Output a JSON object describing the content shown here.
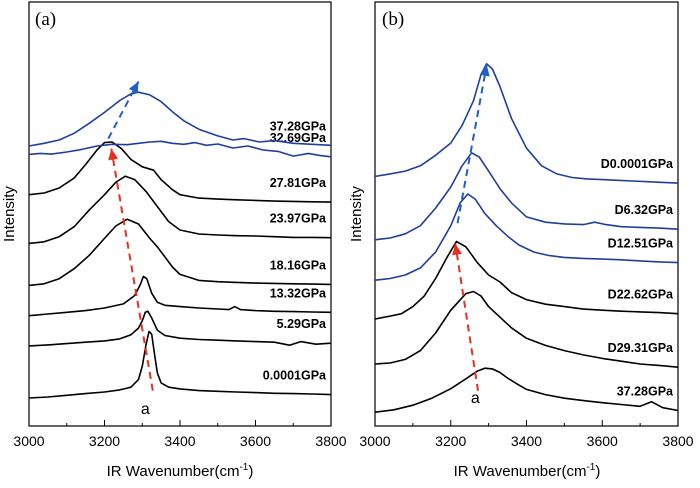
{
  "chart_data": {
    "type": "line",
    "ylabel": "Intensity",
    "xlabel": "IR Wavenumber(cm-1)",
    "xlabel_text": "IR Wavenumber(cm",
    "xlabel_sup": "-1",
    "xlabel_close": ")",
    "xlim": [
      3000,
      3800
    ],
    "xticks": [
      3000,
      3200,
      3400,
      3600,
      3800
    ],
    "xtick_labels": [
      "3000",
      "3200",
      "3400",
      "3600",
      "3800"
    ],
    "colors": {
      "compression": "#000000",
      "decompression": "#1f3f9e",
      "red_arrow": "#e8301c",
      "blue_arrow": "#1f5fc8"
    },
    "panels": [
      {
        "id": "a",
        "panel_label": "(a)",
        "peak_label": "a",
        "peak_label_x": 3308,
        "red_arrow": {
          "from": [
            3328,
            0.22
          ],
          "to": [
            3218,
            7.42
          ]
        },
        "blue_arrow": {
          "from": [
            3210,
            7.72
          ],
          "to": [
            3290,
            9.42
          ]
        },
        "series": [
          {
            "name": "0.0001GPa",
            "color": "#000000",
            "label_pos": "right",
            "x": [
              3000,
              3050,
              3100,
              3150,
              3200,
              3240,
              3270,
              3290,
              3300,
              3310,
              3318,
              3325,
              3332,
              3340,
              3350,
              3370,
              3400,
              3450,
              3500,
              3550,
              3600,
              3650,
              3700,
              3750,
              3800
            ],
            "y": [
              0,
              0.03,
              0.08,
              0.13,
              0.18,
              0.24,
              0.32,
              0.55,
              0.95,
              1.58,
              1.98,
              1.9,
              1.35,
              0.75,
              0.45,
              0.32,
              0.27,
              0.22,
              0.2,
              0.18,
              0.16,
              0.14,
              0.13,
              0.12,
              0.1
            ]
          },
          {
            "name": "5.29GPa",
            "color": "#000000",
            "label_pos": "right",
            "x": [
              3000,
              3050,
              3100,
              3150,
              3200,
              3240,
              3270,
              3290,
              3300,
              3308,
              3315,
              3325,
              3340,
              3360,
              3400,
              3450,
              3500,
              3550,
              3600,
              3650,
              3690,
              3720,
              3760,
              3800
            ],
            "y": [
              1.55,
              1.58,
              1.62,
              1.66,
              1.7,
              1.76,
              1.88,
              2.08,
              2.3,
              2.55,
              2.58,
              2.38,
              2.02,
              1.86,
              1.78,
              1.74,
              1.72,
              1.7,
              1.68,
              1.66,
              1.57,
              1.68,
              1.6,
              1.63
            ]
          },
          {
            "name": "13.32GPa",
            "color": "#000000",
            "label_pos": "right",
            "x": [
              3000,
              3050,
              3100,
              3150,
              3200,
              3250,
              3280,
              3295,
              3303,
              3312,
              3325,
              3340,
              3360,
              3400,
              3450,
              3500,
              3530,
              3545,
              3560,
              3600,
              3650,
              3700,
              3750,
              3800
            ],
            "y": [
              2.45,
              2.5,
              2.55,
              2.6,
              2.68,
              2.8,
              3.05,
              3.38,
              3.62,
              3.55,
              3.12,
              2.85,
              2.76,
              2.72,
              2.68,
              2.65,
              2.63,
              2.72,
              2.63,
              2.6,
              2.58,
              2.57,
              2.56,
              2.55
            ]
          },
          {
            "name": "18.16GPa",
            "color": "#000000",
            "label_pos": "right",
            "x": [
              3000,
              3040,
              3080,
              3120,
              3160,
              3200,
              3230,
              3260,
              3290,
              3320,
              3340,
              3360,
              3380,
              3400,
              3450,
              3500,
              3550,
              3600,
              3650,
              3700,
              3750,
              3800
            ],
            "y": [
              3.35,
              3.4,
              3.55,
              3.85,
              4.25,
              4.75,
              5.12,
              5.32,
              5.18,
              4.75,
              4.5,
              4.2,
              3.9,
              3.68,
              3.5,
              3.46,
              3.44,
              3.42,
              3.41,
              3.4,
              3.39,
              3.38
            ]
          },
          {
            "name": "23.97GPa",
            "color": "#000000",
            "label_pos": "right",
            "x": [
              3000,
              3040,
              3080,
              3120,
              3160,
              3200,
              3230,
              3255,
              3280,
              3310,
              3340,
              3370,
              3400,
              3450,
              3500,
              3550,
              3600,
              3650,
              3700,
              3750,
              3800
            ],
            "y": [
              4.6,
              4.65,
              4.8,
              5.1,
              5.6,
              6.05,
              6.42,
              6.6,
              6.5,
              6.15,
              5.7,
              5.25,
              5.0,
              4.88,
              4.85,
              4.83,
              4.82,
              4.8,
              4.78,
              4.78,
              4.77
            ]
          },
          {
            "name": "27.81GPa",
            "color": "#000000",
            "label_pos": "right",
            "x": [
              3000,
              3040,
              3080,
              3120,
              3150,
              3180,
              3200,
              3220,
              3245,
              3270,
              3300,
              3330,
              3350,
              3380,
              3400,
              3450,
              3500,
              3550,
              3600,
              3650,
              3700,
              3750,
              3800
            ],
            "y": [
              6.05,
              6.1,
              6.25,
              6.55,
              6.95,
              7.38,
              7.6,
              7.62,
              7.42,
              7.1,
              6.88,
              6.78,
              6.5,
              6.2,
              6.05,
              5.95,
              5.92,
              5.9,
              5.88,
              5.86,
              5.85,
              5.84,
              5.83
            ]
          },
          {
            "name": "32.69GPa",
            "color": "#1f3f9e",
            "label_pos": "right",
            "x": [
              3000,
              3030,
              3060,
              3100,
              3140,
              3180,
              3220,
              3260,
              3290,
              3320,
              3350,
              3380,
              3410,
              3440,
              3470,
              3500,
              3540,
              3580,
              3620,
              3660,
              3700,
              3740,
              3770,
              3800
            ],
            "y": [
              7.25,
              7.28,
              7.26,
              7.32,
              7.4,
              7.5,
              7.55,
              7.54,
              7.58,
              7.62,
              7.64,
              7.58,
              7.55,
              7.6,
              7.52,
              7.56,
              7.44,
              7.5,
              7.38,
              7.34,
              7.2,
              7.28,
              7.22,
              7.18
            ]
          },
          {
            "name": "37.28GPa",
            "color": "#1f3f9e",
            "label_pos": "right",
            "x": [
              3000,
              3040,
              3080,
              3120,
              3160,
              3200,
              3240,
              3270,
              3290,
              3320,
              3350,
              3380,
              3410,
              3450,
              3500,
              3540,
              3570,
              3610,
              3650,
              3700,
              3750,
              3800
            ],
            "y": [
              7.5,
              7.58,
              7.68,
              7.88,
              8.18,
              8.5,
              8.85,
              9.05,
              9.1,
              9.02,
              8.82,
              8.52,
              8.25,
              8.0,
              7.8,
              7.68,
              7.72,
              7.62,
              7.66,
              7.58,
              7.55,
              7.52
            ]
          }
        ]
      },
      {
        "id": "b",
        "panel_label": "(b)",
        "peak_label": "a",
        "peak_label_x": 3265,
        "red_arrow": {
          "from": [
            3272,
            0.66
          ],
          "to": [
            3212,
            4.84
          ]
        },
        "blue_arrow": {
          "from": [
            3218,
            5.42
          ],
          "to": [
            3295,
            9.92
          ]
        },
        "series": [
          {
            "name": "37.28GPa",
            "color": "#000000",
            "label_pos": "right",
            "x": [
              3000,
              3050,
              3100,
              3150,
              3200,
              3240,
              3270,
              3290,
              3310,
              3330,
              3350,
              3380,
              3400,
              3450,
              3500,
              3550,
              3600,
              3650,
              3700,
              3730,
              3760,
              3800
            ],
            "y": [
              0.05,
              0.12,
              0.25,
              0.45,
              0.72,
              1.0,
              1.22,
              1.3,
              1.28,
              1.18,
              1.02,
              0.82,
              0.7,
              0.55,
              0.45,
              0.38,
              0.32,
              0.27,
              0.22,
              0.35,
              0.18,
              0.1
            ]
          },
          {
            "name": "D29.31GPa",
            "color": "#000000",
            "label_pos": "right",
            "x": [
              3000,
              3040,
              3080,
              3120,
              3160,
              3200,
              3240,
              3260,
              3280,
              3300,
              3330,
              3360,
              3400,
              3450,
              3500,
              3550,
              3600,
              3650,
              3700,
              3750,
              3800
            ],
            "y": [
              1.42,
              1.45,
              1.55,
              1.8,
              2.3,
              2.95,
              3.42,
              3.48,
              3.35,
              3.05,
              2.75,
              2.45,
              2.15,
              1.95,
              1.8,
              1.68,
              1.58,
              1.5,
              1.42,
              1.38,
              1.33
            ]
          },
          {
            "name": "D22.62GPa",
            "color": "#000000",
            "label_pos": "right",
            "x": [
              3000,
              3040,
              3070,
              3100,
              3130,
              3160,
              3190,
              3215,
              3240,
              3270,
              3300,
              3330,
              3360,
              3400,
              3450,
              3500,
              3550,
              3600,
              3650,
              3700,
              3750,
              3800
            ],
            "y": [
              2.7,
              2.78,
              2.85,
              3.05,
              3.35,
              3.85,
              4.45,
              4.9,
              4.75,
              4.3,
              3.95,
              3.75,
              3.45,
              3.25,
              3.12,
              3.05,
              2.98,
              2.95,
              2.92,
              2.9,
              2.88,
              2.85
            ]
          },
          {
            "name": "D12.51GPa",
            "color": "#1f3f9e",
            "label_pos": "right",
            "x": [
              3000,
              3040,
              3080,
              3120,
              3160,
              3200,
              3225,
              3245,
              3265,
              3290,
              3320,
              3350,
              3380,
              3420,
              3460,
              3500,
              3550,
              3600,
              3650,
              3700,
              3750,
              3800
            ],
            "y": [
              3.8,
              3.85,
              3.95,
              4.15,
              4.6,
              5.35,
              6.0,
              6.25,
              6.1,
              5.7,
              5.35,
              5.05,
              4.8,
              4.6,
              4.5,
              4.45,
              4.42,
              4.4,
              4.38,
              4.35,
              4.32,
              4.3
            ]
          },
          {
            "name": "D6.32GPa",
            "color": "#1f3f9e",
            "label_pos": "right",
            "x": [
              3000,
              3040,
              3080,
              3120,
              3160,
              3200,
              3230,
              3255,
              3275,
              3300,
              3330,
              3360,
              3400,
              3450,
              3500,
              3550,
              3580,
              3610,
              3650,
              3700,
              3750,
              3800
            ],
            "y": [
              4.95,
              5.0,
              5.12,
              5.35,
              5.85,
              6.45,
              7.05,
              7.42,
              7.3,
              6.9,
              6.4,
              6.0,
              5.6,
              5.45,
              5.4,
              5.38,
              5.45,
              5.38,
              5.32,
              5.3,
              5.28,
              5.25
            ]
          },
          {
            "name": "D0.0001GPa",
            "color": "#1f3f9e",
            "label_pos": "right",
            "x": [
              3000,
              3040,
              3080,
              3120,
              3160,
              3200,
              3230,
              3260,
              3280,
              3295,
              3310,
              3330,
              3360,
              3400,
              3440,
              3480,
              3520,
              3560,
              3600,
              3640,
              3680,
              3720,
              3760,
              3800
            ],
            "y": [
              6.75,
              6.82,
              6.9,
              7.05,
              7.35,
              7.7,
              8.2,
              8.9,
              9.65,
              9.95,
              9.8,
              9.3,
              8.4,
              7.55,
              7.05,
              6.82,
              6.72,
              6.68,
              6.66,
              6.64,
              6.62,
              6.6,
              6.58,
              6.56
            ]
          }
        ]
      }
    ]
  }
}
